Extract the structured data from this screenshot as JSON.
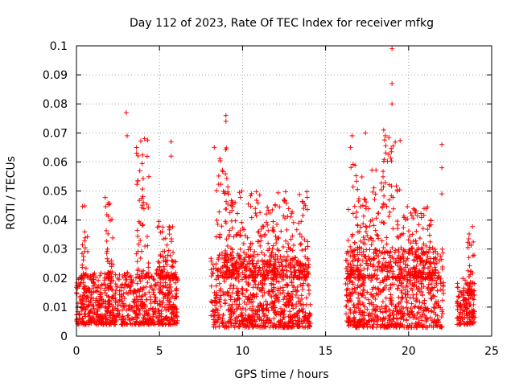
{
  "chart_data": {
    "type": "scatter",
    "title": "Day 112 of 2023, Rate Of TEC Index for receiver mfkg",
    "xlabel": "GPS time / hours",
    "ylabel": "ROTI / TECUs",
    "xlim": [
      0,
      25
    ],
    "ylim": [
      0,
      0.1
    ],
    "xticks": [
      0,
      5,
      10,
      15,
      20,
      25
    ],
    "yticks": [
      0,
      0.01,
      0.02,
      0.03,
      0.04,
      0.05,
      0.06,
      0.07,
      0.08,
      0.09,
      0.1
    ],
    "grid": true,
    "marker": "+",
    "color": "#ff0000",
    "segments": [
      {
        "x": [
          0.0,
          6.1
        ],
        "base": [
          0.004,
          0.022
        ]
      },
      {
        "x": [
          8.1,
          14.1
        ],
        "base": [
          0.003,
          0.028
        ]
      },
      {
        "x": [
          16.2,
          22.1
        ],
        "base": [
          0.003,
          0.03
        ]
      },
      {
        "x": [
          22.9,
          24.0
        ],
        "base": [
          0.004,
          0.02
        ]
      }
    ],
    "bursts": [
      {
        "x": [
          0.3,
          0.7
        ],
        "y": [
          0.02,
          0.045
        ]
      },
      {
        "x": [
          1.7,
          2.2
        ],
        "y": [
          0.02,
          0.05
        ]
      },
      {
        "x": [
          3.6,
          4.4
        ],
        "y": [
          0.02,
          0.068
        ]
      },
      {
        "x": [
          4.8,
          6.0
        ],
        "y": [
          0.02,
          0.04
        ]
      },
      {
        "x": [
          8.4,
          9.2
        ],
        "y": [
          0.02,
          0.065
        ]
      },
      {
        "x": [
          9.0,
          10.5
        ],
        "y": [
          0.02,
          0.05
        ]
      },
      {
        "x": [
          10.5,
          14.0
        ],
        "y": [
          0.02,
          0.05
        ]
      },
      {
        "x": [
          16.3,
          18.5
        ],
        "y": [
          0.02,
          0.06
        ]
      },
      {
        "x": [
          18.5,
          19.5
        ],
        "y": [
          0.02,
          0.07
        ]
      },
      {
        "x": [
          19.5,
          21.5
        ],
        "y": [
          0.02,
          0.045
        ]
      },
      {
        "x": [
          23.5,
          23.95
        ],
        "y": [
          0.015,
          0.038
        ]
      }
    ],
    "outliers": [
      {
        "x": 3.0,
        "y": 0.077
      },
      {
        "x": 3.05,
        "y": 0.069
      },
      {
        "x": 4.1,
        "y": 0.068
      },
      {
        "x": 5.7,
        "y": 0.067
      },
      {
        "x": 5.7,
        "y": 0.062
      },
      {
        "x": 8.3,
        "y": 0.065
      },
      {
        "x": 9.0,
        "y": 0.076
      },
      {
        "x": 9.0,
        "y": 0.074
      },
      {
        "x": 16.6,
        "y": 0.069
      },
      {
        "x": 16.5,
        "y": 0.065
      },
      {
        "x": 17.4,
        "y": 0.07
      },
      {
        "x": 18.5,
        "y": 0.071
      },
      {
        "x": 18.6,
        "y": 0.069
      },
      {
        "x": 19.0,
        "y": 0.099
      },
      {
        "x": 19.0,
        "y": 0.087
      },
      {
        "x": 19.0,
        "y": 0.08
      },
      {
        "x": 22.0,
        "y": 0.066
      },
      {
        "x": 22.0,
        "y": 0.058
      },
      {
        "x": 22.0,
        "y": 0.049
      }
    ]
  }
}
